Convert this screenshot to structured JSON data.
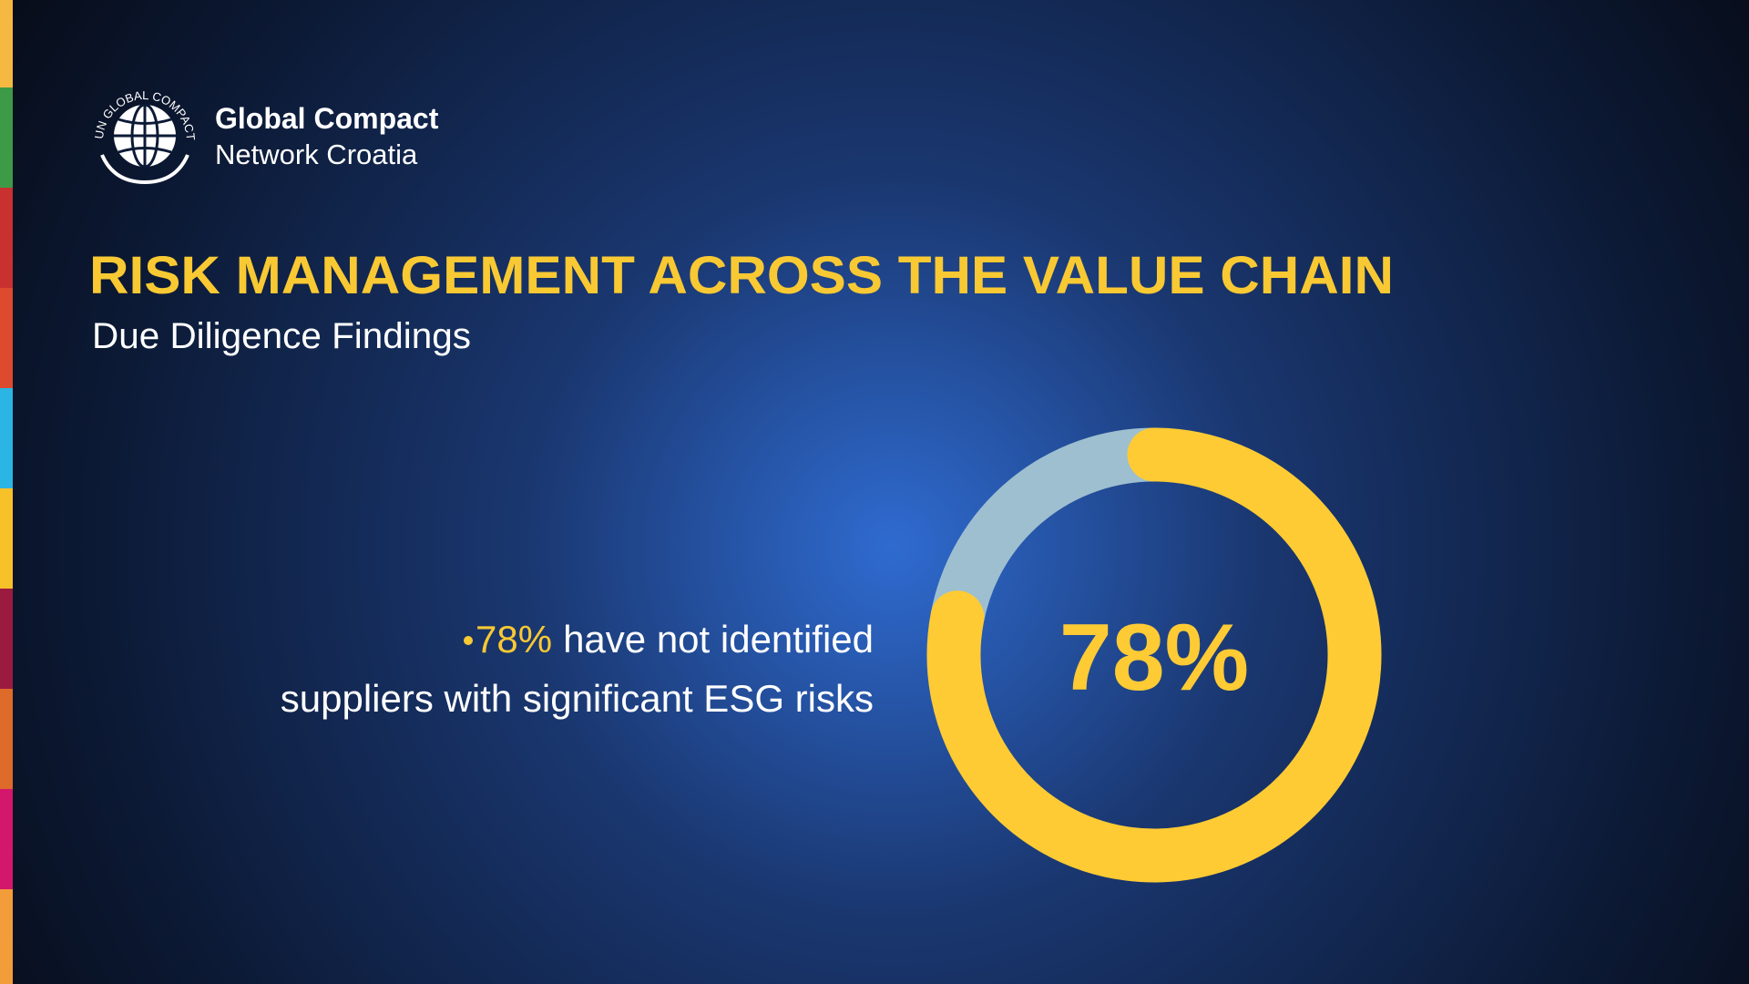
{
  "logo": {
    "ring": "UN GLOBAL COMPACT",
    "name": "Global Compact",
    "network": "Network Croatia"
  },
  "chart_data": {
    "type": "donut",
    "title": "RISK MANAGEMENT ACROSS THE VALUE CHAIN",
    "subtitle": "Due Diligence Findings",
    "values": [
      78,
      22
    ],
    "colors": [
      "#fecb34",
      "#9ebfcf"
    ],
    "value_labels": [
      "78%",
      null
    ],
    "annotation": {
      "highlight": "78%",
      "lines": [
        "have not identified",
        "suppliers with significant ESG risks"
      ]
    }
  }
}
